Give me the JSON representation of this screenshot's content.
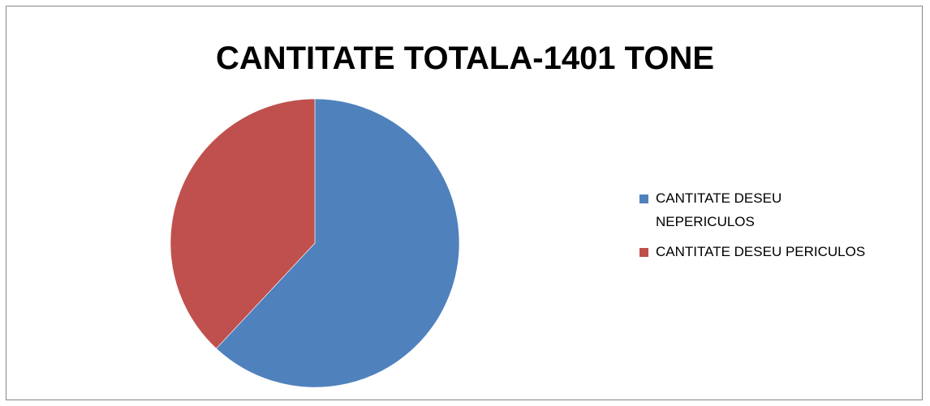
{
  "chart_data": {
    "type": "pie",
    "title": "CANTITATE TOTALA-1401 TONE",
    "categories": [
      "CANTITATE DESEU NEPERICULOS",
      "CANTITATE DESEU PERICULOS"
    ],
    "values": [
      868,
      533
    ],
    "colors": [
      "#4f81bd",
      "#c0504d"
    ],
    "start_angle_deg": 0,
    "direction": "clockwise",
    "legend": "right"
  }
}
